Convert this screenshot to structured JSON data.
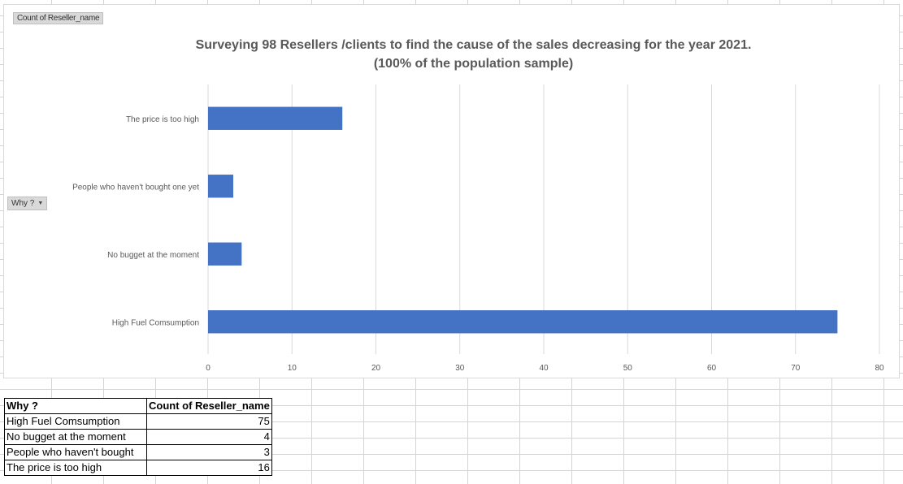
{
  "value_field_button": "Count of Reseller_name",
  "axis_field_button": "Why ?",
  "chart_data": {
    "type": "bar",
    "orientation": "horizontal",
    "title": "Surveying 98 Resellers /clients to find the cause of the sales decreasing for the year 2021.",
    "subtitle": "(100% of the population sample)",
    "categories": [
      "The price is too high",
      "People who haven't bought one yet",
      "No bugget at the moment",
      "High Fuel Comsumption"
    ],
    "values": [
      16,
      3,
      4,
      75
    ],
    "xlim": [
      0,
      80
    ],
    "xticks": [
      0,
      10,
      20,
      30,
      40,
      50,
      60,
      70,
      80
    ],
    "grid": true,
    "legend": "none",
    "bar_color": "#4472c4"
  },
  "pivot_table": {
    "headers": [
      "Why ?",
      "Count of Reseller_name"
    ],
    "rows": [
      {
        "label": "High Fuel Comsumption",
        "count": "75"
      },
      {
        "label": "No bugget at the moment",
        "count": "4"
      },
      {
        "label": "People who haven't bought",
        "count": "3"
      },
      {
        "label": "The price is too high",
        "count": "16"
      }
    ]
  }
}
